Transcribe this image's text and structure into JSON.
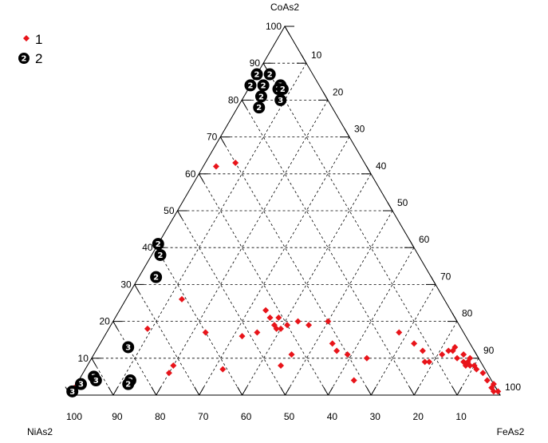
{
  "chart_data": {
    "type": "ternary-scatter",
    "vertices": {
      "top": "CoAs2",
      "left": "NiAs2",
      "right": "FeAs2"
    },
    "ticks": [
      "10",
      "20",
      "30",
      "40",
      "50",
      "60",
      "70",
      "80",
      "90",
      "100"
    ],
    "grid": true,
    "legend_position": "top-left",
    "legend": [
      {
        "key": "1",
        "label": "1",
        "marker": "red-diamond",
        "color": "#e8141a"
      },
      {
        "key": "2",
        "label": "2",
        "marker": "black-circle-numbered",
        "color": "#000000"
      }
    ],
    "colors": {
      "series1": "#e8141a",
      "series2": "#000000"
    },
    "series": [
      {
        "key": "1",
        "points": [
          {
            "co": 62,
            "ni": 35,
            "fe": 3
          },
          {
            "co": 63,
            "ni": 30,
            "fe": 7
          },
          {
            "co": 26,
            "ni": 61,
            "fe": 13
          },
          {
            "co": 18,
            "ni": 73,
            "fe": 9
          },
          {
            "co": 17,
            "ni": 60,
            "fe": 23
          },
          {
            "co": 16,
            "ni": 52,
            "fe": 32
          },
          {
            "co": 17,
            "ni": 48,
            "fe": 35
          },
          {
            "co": 23,
            "ni": 43,
            "fe": 34
          },
          {
            "co": 21,
            "ni": 43,
            "fe": 36
          },
          {
            "co": 21,
            "ni": 41,
            "fe": 38
          },
          {
            "co": 19,
            "ni": 43,
            "fe": 38
          },
          {
            "co": 18,
            "ni": 43,
            "fe": 39
          },
          {
            "co": 18,
            "ni": 42,
            "fe": 40
          },
          {
            "co": 19,
            "ni": 40,
            "fe": 41
          },
          {
            "co": 20,
            "ni": 37,
            "fe": 43
          },
          {
            "co": 19,
            "ni": 35,
            "fe": 46
          },
          {
            "co": 20,
            "ni": 30,
            "fe": 50
          },
          {
            "co": 11,
            "ni": 43,
            "fe": 46
          },
          {
            "co": 14,
            "ni": 32,
            "fe": 54
          },
          {
            "co": 12,
            "ni": 32,
            "fe": 56
          },
          {
            "co": 11,
            "ni": 30,
            "fe": 59
          },
          {
            "co": 10,
            "ni": 26,
            "fe": 64
          },
          {
            "co": 8,
            "ni": 47,
            "fe": 45
          },
          {
            "co": 7,
            "ni": 61,
            "fe": 32
          },
          {
            "co": 8,
            "ni": 72,
            "fe": 20
          },
          {
            "co": 6,
            "ni": 74,
            "fe": 20
          },
          {
            "co": 4,
            "ni": 32,
            "fe": 64
          },
          {
            "co": 2,
            "ni": 99,
            "fe": -1
          },
          {
            "co": 17,
            "ni": 15,
            "fe": 68
          },
          {
            "co": 14,
            "ni": 13,
            "fe": 73
          },
          {
            "co": 12,
            "ni": 12,
            "fe": 76
          },
          {
            "co": 9,
            "ni": 13,
            "fe": 78
          },
          {
            "co": 9,
            "ni": 12,
            "fe": 79
          },
          {
            "co": 11,
            "ni": 8,
            "fe": 81
          },
          {
            "co": 12,
            "ni": 6,
            "fe": 82
          },
          {
            "co": 12,
            "ni": 5,
            "fe": 83
          },
          {
            "co": 13,
            "ni": 4,
            "fe": 83
          },
          {
            "co": 10,
            "ni": 5,
            "fe": 85
          },
          {
            "co": 11,
            "ni": 3,
            "fe": 86
          },
          {
            "co": 9,
            "ni": 4,
            "fe": 87
          },
          {
            "co": 8,
            "ni": 4,
            "fe": 88
          },
          {
            "co": 9,
            "ni": 3,
            "fe": 88
          },
          {
            "co": 8,
            "ni": 3,
            "fe": 89
          },
          {
            "co": 10,
            "ni": 2,
            "fe": 88
          },
          {
            "co": 8,
            "ni": 2,
            "fe": 90
          },
          {
            "co": 7,
            "ni": 2,
            "fe": 91
          },
          {
            "co": 6,
            "ni": 1,
            "fe": 93
          },
          {
            "co": 4,
            "ni": 1,
            "fe": 95
          },
          {
            "co": 2,
            "ni": 1,
            "fe": 97
          },
          {
            "co": 3,
            "ni": 0,
            "fe": 97
          },
          {
            "co": 1,
            "ni": 1,
            "fe": 98
          },
          {
            "co": 1,
            "ni": 0,
            "fe": 99
          }
        ]
      },
      {
        "key": "2",
        "points": [
          {
            "co": 87,
            "ni": 13,
            "fe": 0,
            "label": "2"
          },
          {
            "co": 84,
            "ni": 16,
            "fe": 0,
            "label": "2"
          },
          {
            "co": 87,
            "ni": 10,
            "fe": 3,
            "label": "2"
          },
          {
            "co": 84,
            "ni": 13,
            "fe": 3,
            "label": "2"
          },
          {
            "co": 81,
            "ni": 15,
            "fe": 4,
            "label": "2"
          },
          {
            "co": 78,
            "ni": 17,
            "fe": 5,
            "label": "2"
          },
          {
            "co": 84,
            "ni": 9,
            "fe": 7,
            "label": "2"
          },
          {
            "co": 83,
            "ni": 10,
            "fe": 7,
            "label": "2"
          },
          {
            "co": 83,
            "ni": 9,
            "fe": 8,
            "label": "2"
          },
          {
            "co": 80,
            "ni": 11,
            "fe": 9,
            "label": "3"
          },
          {
            "co": 41,
            "ni": 59,
            "fe": 0,
            "label": "2"
          },
          {
            "co": 38,
            "ni": 60,
            "fe": 2,
            "label": "2"
          },
          {
            "co": 32,
            "ni": 64,
            "fe": 4,
            "label": "2"
          },
          {
            "co": 13,
            "ni": 80,
            "fe": 7,
            "label": "3"
          },
          {
            "co": 5,
            "ni": 92,
            "fe": 3,
            "label": "3"
          },
          {
            "co": 4,
            "ni": 92,
            "fe": 4,
            "label": "3"
          },
          {
            "co": 3,
            "ni": 96,
            "fe": 1,
            "label": "3"
          },
          {
            "co": 1,
            "ni": 99,
            "fe": 0,
            "label": "3"
          },
          {
            "co": 4,
            "ni": 84,
            "fe": 12,
            "label": "2"
          },
          {
            "co": 3,
            "ni": 85,
            "fe": 12,
            "label": "2"
          }
        ]
      }
    ]
  }
}
